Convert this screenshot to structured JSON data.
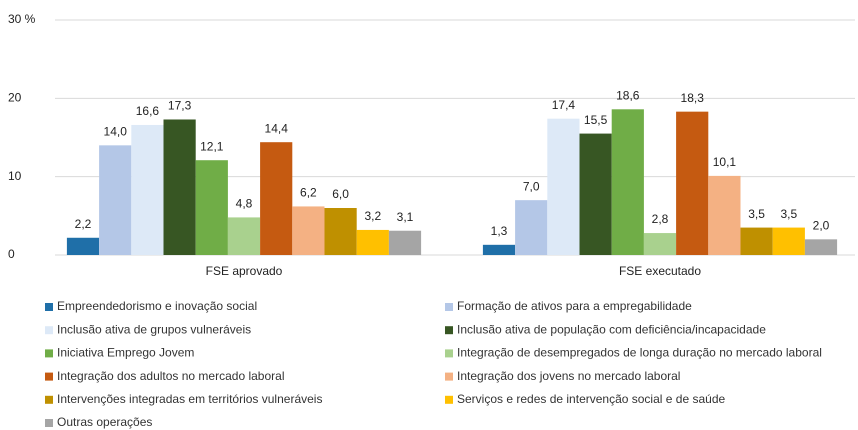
{
  "chart_data": {
    "type": "bar",
    "categories": [
      "FSE aprovado",
      "FSE executado"
    ],
    "ylim": [
      0,
      30
    ],
    "yticks": [
      0,
      10,
      20,
      {
        "value": 30,
        "label": "30 %"
      }
    ],
    "grid": true,
    "series": [
      {
        "name": "Empreendedorismo e inovação social",
        "color": "#1f6fa8",
        "values": [
          2.2,
          1.3
        ],
        "value_labels": [
          "2,2",
          "1,3"
        ]
      },
      {
        "name": "Formação de ativos para a empregabilidade",
        "color": "#b4c7e7",
        "values": [
          14.0,
          7.0
        ],
        "value_labels": [
          "14,0",
          "7,0"
        ]
      },
      {
        "name": "Inclusão ativa de grupos vulneráveis",
        "color": "#dde9f7",
        "values": [
          16.6,
          17.4
        ],
        "value_labels": [
          "16,6",
          "17,4"
        ]
      },
      {
        "name": "Inclusão ativa de população com deficiência/incapacidade",
        "color": "#375623",
        "values": [
          17.3,
          15.5
        ],
        "value_labels": [
          "17,3",
          "15,5"
        ]
      },
      {
        "name": "Iniciativa Emprego Jovem",
        "color": "#70ad47",
        "values": [
          12.1,
          18.6
        ],
        "value_labels": [
          "12,1",
          "18,6"
        ]
      },
      {
        "name": "Integração de desempregados de longa duração no mercado laboral",
        "color": "#a9d18e",
        "values": [
          4.8,
          2.8
        ],
        "value_labels": [
          "4,8",
          "2,8"
        ]
      },
      {
        "name": "Integração dos adultos no mercado laboral",
        "color": "#c55a11",
        "values": [
          14.4,
          18.3
        ],
        "value_labels": [
          "14,4",
          "18,3"
        ]
      },
      {
        "name": "Integração dos jovens no mercado laboral",
        "color": "#f4b183",
        "values": [
          6.2,
          10.1
        ],
        "value_labels": [
          "6,2",
          "10,1"
        ]
      },
      {
        "name": "Intervenções integradas em territórios vulneráveis",
        "color": "#bf9000",
        "values": [
          6.0,
          3.5
        ],
        "value_labels": [
          "6,0",
          "3,5"
        ]
      },
      {
        "name": "Serviços e redes de intervenção social e de saúde",
        "color": "#ffc000",
        "values": [
          3.2,
          3.5
        ],
        "value_labels": [
          "3,2",
          "3,5"
        ]
      },
      {
        "name": "Outras operações",
        "color": "#a5a5a5",
        "values": [
          3.1,
          2.0
        ],
        "value_labels": [
          "3,1",
          "2,0"
        ]
      }
    ]
  }
}
